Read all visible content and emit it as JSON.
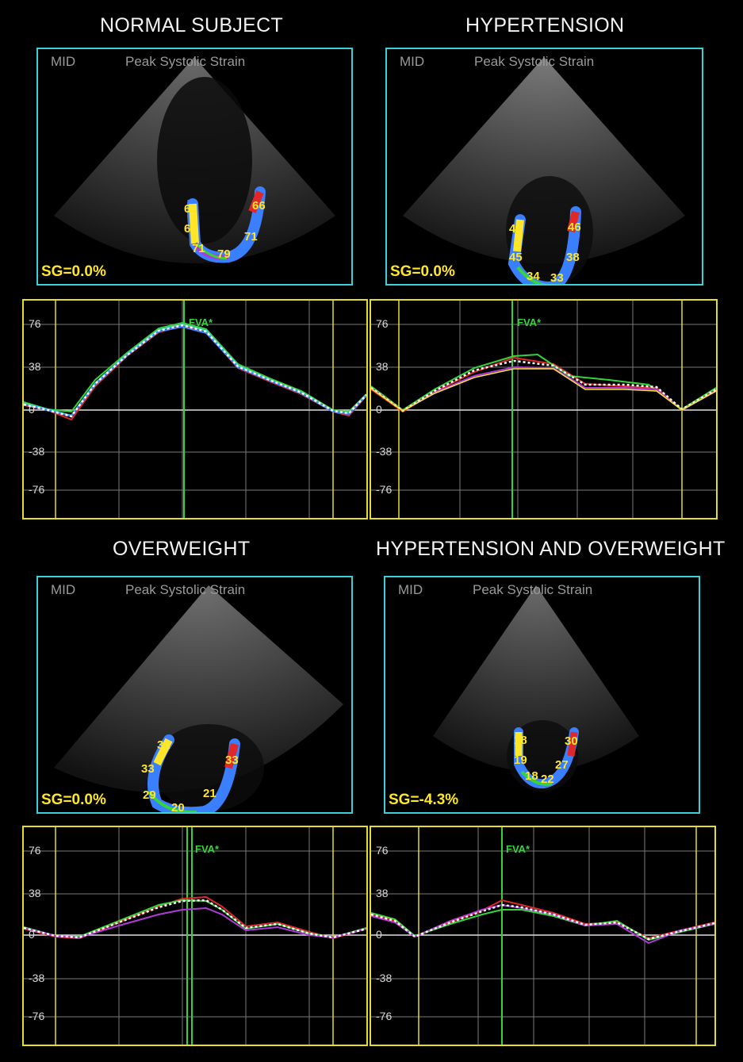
{
  "colors": {
    "frame": "#3ad0d6",
    "plot_frame": "#e6dc2a",
    "strain": "#ffe629",
    "fva": "#35d43a"
  },
  "panels": [
    {
      "title": "NORMAL SUBJECT",
      "view": "MID",
      "measure": "Peak Systolic Strain",
      "sg": "SG=0.0%",
      "segments": [
        "60",
        "67",
        "71",
        "79",
        "71",
        "66"
      ],
      "fva": "FVA*",
      "yticks": [
        "76",
        "38",
        "0",
        "-38",
        "-76"
      ]
    },
    {
      "title": "HYPERTENSION",
      "view": "MID",
      "measure": "Peak Systolic Strain",
      "sg": "SG=0.0%",
      "segments": [
        "44",
        "45",
        "34",
        "33",
        "38",
        "46"
      ],
      "fva": "FVA*",
      "yticks": [
        "76",
        "38",
        "0",
        "-38",
        "-76"
      ]
    },
    {
      "title": "OVERWEIGHT",
      "view": "MID",
      "measure": "Peak Systolic Strain",
      "sg": "SG=0.0%",
      "segments": [
        "32",
        "33",
        "29",
        "20",
        "21",
        "33"
      ],
      "fva": "FVA*",
      "yticks": [
        "76",
        "38",
        "0",
        "-38",
        "-76"
      ]
    },
    {
      "title": "HYPERTENSION AND OVERWEIGHT",
      "view": "MID",
      "measure": "Peak Systolic Strain",
      "sg": "SG=-4.3%",
      "segments": [
        "18",
        "19",
        "18",
        "22",
        "27",
        "30"
      ],
      "fva": "FVA*",
      "yticks": [
        "76",
        "38",
        "0",
        "-38",
        "-76"
      ]
    }
  ]
}
